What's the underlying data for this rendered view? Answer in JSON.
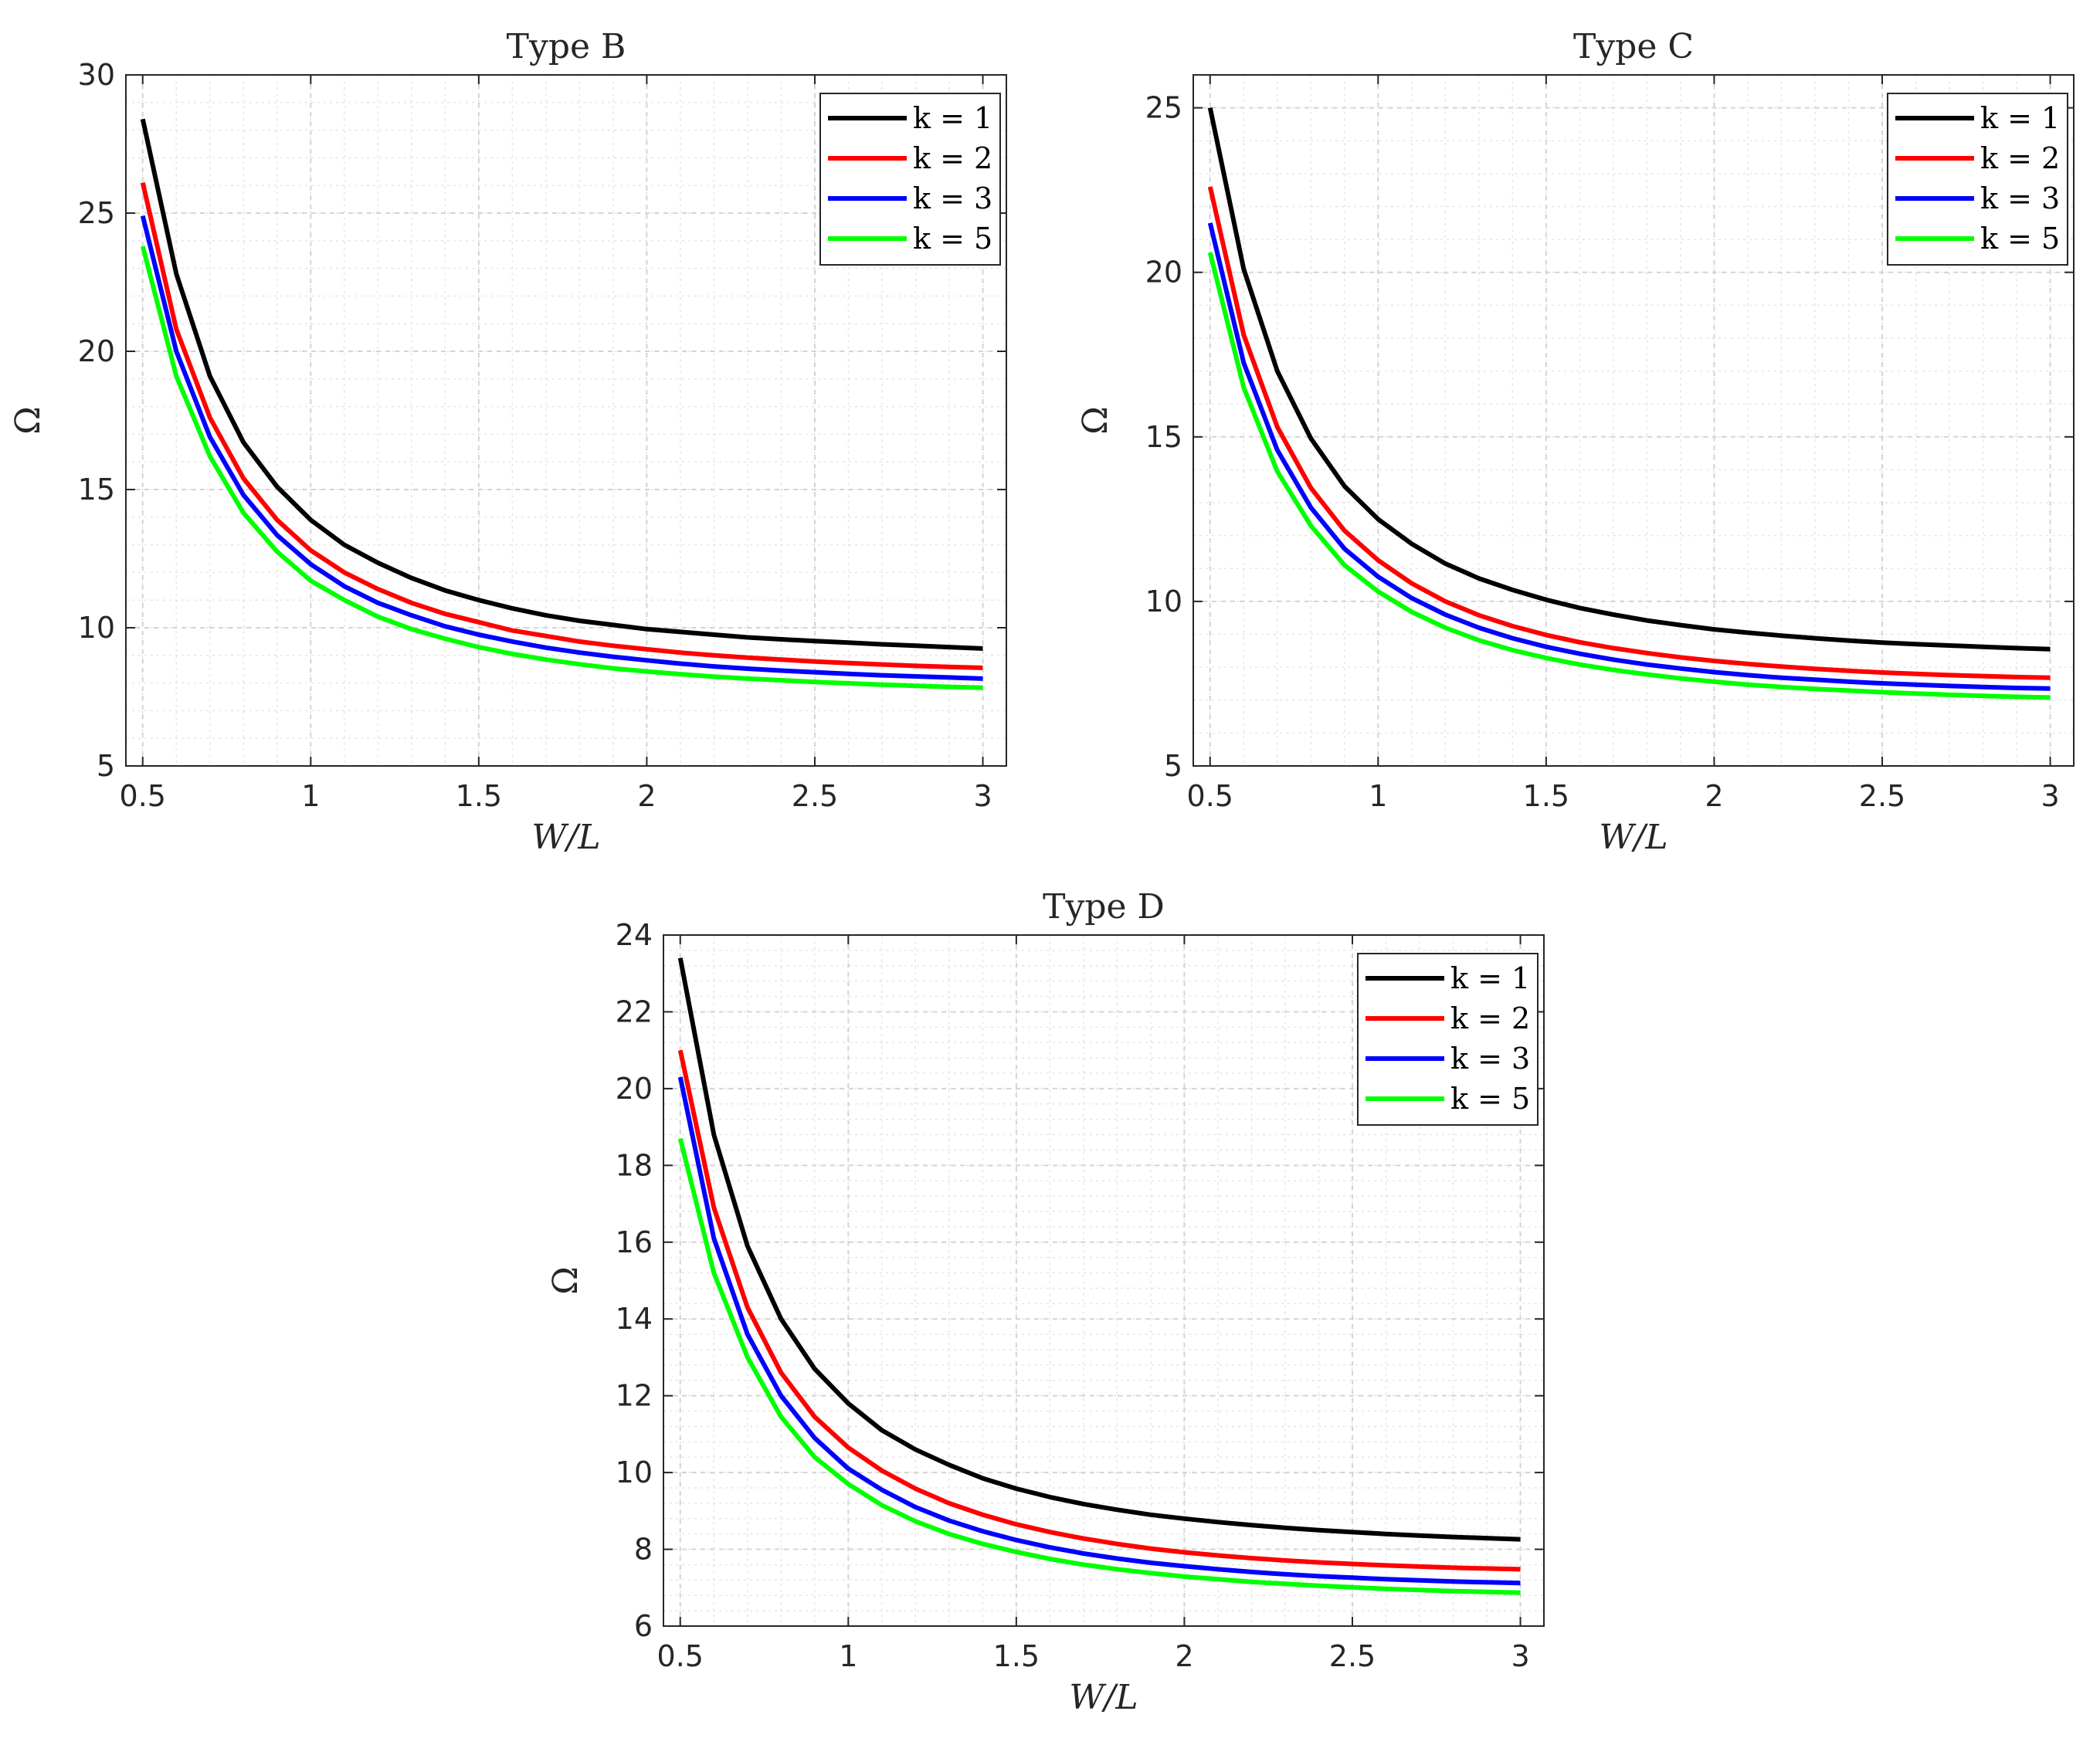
{
  "chart_data": [
    {
      "type": "line",
      "title": "Type B",
      "xlabel": "W/L",
      "ylabel": "Ω",
      "xlim": [
        0.45,
        3.07
      ],
      "ylim": [
        5,
        30
      ],
      "xticks": [
        0.5,
        1,
        1.5,
        2,
        2.5,
        3
      ],
      "xtick_labels": [
        "0.5",
        "1",
        "1.5",
        "2",
        "2.5",
        "3"
      ],
      "yticks": [
        5,
        10,
        15,
        20,
        25,
        30
      ],
      "ytick_labels": [
        "5",
        "10",
        "15",
        "20",
        "25",
        "30"
      ],
      "grid": true,
      "legend_position": "top-right",
      "x": [
        0.5,
        0.6,
        0.7,
        0.8,
        0.9,
        1.0,
        1.1,
        1.2,
        1.3,
        1.4,
        1.5,
        1.6,
        1.7,
        1.8,
        1.9,
        2.0,
        2.1,
        2.2,
        2.3,
        2.4,
        2.5,
        2.6,
        2.7,
        2.8,
        2.9,
        3.0
      ],
      "series": [
        {
          "name": "k = 1",
          "k": "1",
          "color": "#000000",
          "values": [
            28.4,
            22.8,
            19.1,
            16.7,
            15.1,
            13.9,
            13.0,
            12.35,
            11.8,
            11.35,
            11.0,
            10.7,
            10.45,
            10.25,
            10.1,
            9.95,
            9.85,
            9.75,
            9.65,
            9.58,
            9.52,
            9.46,
            9.4,
            9.35,
            9.3,
            9.25
          ]
        },
        {
          "name": "k = 2",
          "k": "2",
          "color": "#ff0000",
          "values": [
            26.1,
            20.8,
            17.6,
            15.4,
            13.9,
            12.8,
            12.0,
            11.4,
            10.9,
            10.5,
            10.2,
            9.9,
            9.7,
            9.5,
            9.35,
            9.22,
            9.1,
            9.0,
            8.92,
            8.85,
            8.78,
            8.72,
            8.67,
            8.62,
            8.58,
            8.55
          ]
        },
        {
          "name": "k = 3",
          "k": "3",
          "color": "#0000ff",
          "values": [
            24.9,
            20.0,
            16.9,
            14.8,
            13.35,
            12.3,
            11.5,
            10.9,
            10.45,
            10.05,
            9.75,
            9.5,
            9.28,
            9.1,
            8.95,
            8.82,
            8.7,
            8.6,
            8.52,
            8.45,
            8.39,
            8.33,
            8.28,
            8.24,
            8.2,
            8.16
          ]
        },
        {
          "name": "k = 5",
          "k": "5",
          "color": "#00ff00",
          "values": [
            23.8,
            19.1,
            16.2,
            14.15,
            12.75,
            11.7,
            11.0,
            10.4,
            9.95,
            9.6,
            9.3,
            9.05,
            8.85,
            8.68,
            8.53,
            8.42,
            8.32,
            8.23,
            8.16,
            8.1,
            8.04,
            7.99,
            7.94,
            7.9,
            7.86,
            7.83
          ]
        }
      ]
    },
    {
      "type": "line",
      "title": "Type C",
      "xlabel": "W/L",
      "ylabel": "Ω",
      "xlim": [
        0.45,
        3.07
      ],
      "ylim": [
        5,
        26
      ],
      "xticks": [
        0.5,
        1,
        1.5,
        2,
        2.5,
        3
      ],
      "xtick_labels": [
        "0.5",
        "1",
        "1.5",
        "2",
        "2.5",
        "3"
      ],
      "yticks": [
        5,
        10,
        15,
        20,
        25
      ],
      "ytick_labels": [
        "5",
        "10",
        "15",
        "20",
        "25"
      ],
      "grid": true,
      "legend_position": "top-right",
      "x": [
        0.5,
        0.6,
        0.7,
        0.8,
        0.9,
        1.0,
        1.1,
        1.2,
        1.3,
        1.4,
        1.5,
        1.6,
        1.7,
        1.8,
        1.9,
        2.0,
        2.1,
        2.2,
        2.3,
        2.4,
        2.5,
        2.6,
        2.7,
        2.8,
        2.9,
        3.0
      ],
      "series": [
        {
          "name": "k = 1",
          "k": "1",
          "color": "#000000",
          "values": [
            25.0,
            20.1,
            17.0,
            14.95,
            13.5,
            12.5,
            11.75,
            11.15,
            10.7,
            10.35,
            10.05,
            9.8,
            9.6,
            9.42,
            9.28,
            9.15,
            9.05,
            8.96,
            8.88,
            8.81,
            8.75,
            8.7,
            8.66,
            8.62,
            8.58,
            8.55
          ]
        },
        {
          "name": "k = 2",
          "k": "2",
          "color": "#ff0000",
          "values": [
            22.6,
            18.1,
            15.3,
            13.45,
            12.15,
            11.25,
            10.55,
            10.0,
            9.58,
            9.25,
            8.98,
            8.76,
            8.58,
            8.43,
            8.3,
            8.19,
            8.1,
            8.02,
            7.95,
            7.89,
            7.84,
            7.8,
            7.76,
            7.73,
            7.7,
            7.68
          ]
        },
        {
          "name": "k = 3",
          "k": "3",
          "color": "#0000ff",
          "values": [
            21.5,
            17.25,
            14.6,
            12.85,
            11.6,
            10.75,
            10.1,
            9.6,
            9.2,
            8.88,
            8.62,
            8.41,
            8.23,
            8.08,
            7.96,
            7.85,
            7.76,
            7.68,
            7.62,
            7.56,
            7.51,
            7.47,
            7.43,
            7.4,
            7.37,
            7.35
          ]
        },
        {
          "name": "k = 5",
          "k": "5",
          "color": "#00ff00",
          "values": [
            20.6,
            16.5,
            13.95,
            12.3,
            11.1,
            10.3,
            9.68,
            9.2,
            8.82,
            8.52,
            8.28,
            8.08,
            7.92,
            7.78,
            7.66,
            7.56,
            7.47,
            7.4,
            7.34,
            7.29,
            7.24,
            7.2,
            7.16,
            7.13,
            7.1,
            7.08
          ]
        }
      ]
    },
    {
      "type": "line",
      "title": "Type D",
      "xlabel": "W/L",
      "ylabel": "Ω",
      "xlim": [
        0.45,
        3.07
      ],
      "ylim": [
        6,
        24
      ],
      "xticks": [
        0.5,
        1,
        1.5,
        2,
        2.5,
        3
      ],
      "xtick_labels": [
        "0.5",
        "1",
        "1.5",
        "2",
        "2.5",
        "3"
      ],
      "yticks": [
        6,
        8,
        10,
        12,
        14,
        16,
        18,
        20,
        22,
        24
      ],
      "ytick_labels": [
        "6",
        "8",
        "10",
        "12",
        "14",
        "16",
        "18",
        "20",
        "22",
        "24"
      ],
      "grid": true,
      "legend_position": "top-right",
      "x": [
        0.5,
        0.6,
        0.7,
        0.8,
        0.9,
        1.0,
        1.1,
        1.2,
        1.3,
        1.4,
        1.5,
        1.6,
        1.7,
        1.8,
        1.9,
        2.0,
        2.1,
        2.2,
        2.3,
        2.4,
        2.5,
        2.6,
        2.7,
        2.8,
        2.9,
        3.0
      ],
      "series": [
        {
          "name": "k = 1",
          "k": "1",
          "color": "#000000",
          "values": [
            23.4,
            18.8,
            15.9,
            14.0,
            12.7,
            11.8,
            11.1,
            10.6,
            10.2,
            9.85,
            9.58,
            9.36,
            9.18,
            9.03,
            8.9,
            8.8,
            8.71,
            8.63,
            8.56,
            8.5,
            8.45,
            8.4,
            8.36,
            8.32,
            8.29,
            8.26
          ]
        },
        {
          "name": "k = 2",
          "k": "2",
          "color": "#ff0000",
          "values": [
            21.0,
            16.9,
            14.3,
            12.6,
            11.45,
            10.65,
            10.05,
            9.58,
            9.2,
            8.9,
            8.65,
            8.45,
            8.28,
            8.14,
            8.02,
            7.92,
            7.84,
            7.77,
            7.71,
            7.66,
            7.62,
            7.58,
            7.55,
            7.52,
            7.5,
            7.48
          ]
        },
        {
          "name": "k = 3",
          "k": "3",
          "color": "#0000ff",
          "values": [
            20.3,
            16.1,
            13.6,
            12.0,
            10.9,
            10.1,
            9.55,
            9.1,
            8.75,
            8.47,
            8.24,
            8.05,
            7.89,
            7.76,
            7.65,
            7.56,
            7.48,
            7.41,
            7.35,
            7.3,
            7.26,
            7.22,
            7.19,
            7.16,
            7.14,
            7.12
          ]
        },
        {
          "name": "k = 5",
          "k": "5",
          "color": "#00ff00",
          "values": [
            18.7,
            15.2,
            13.0,
            11.45,
            10.4,
            9.7,
            9.15,
            8.73,
            8.4,
            8.14,
            7.93,
            7.75,
            7.6,
            7.48,
            7.38,
            7.29,
            7.22,
            7.15,
            7.1,
            7.05,
            7.01,
            6.97,
            6.94,
            6.91,
            6.89,
            6.87
          ]
        }
      ]
    }
  ]
}
